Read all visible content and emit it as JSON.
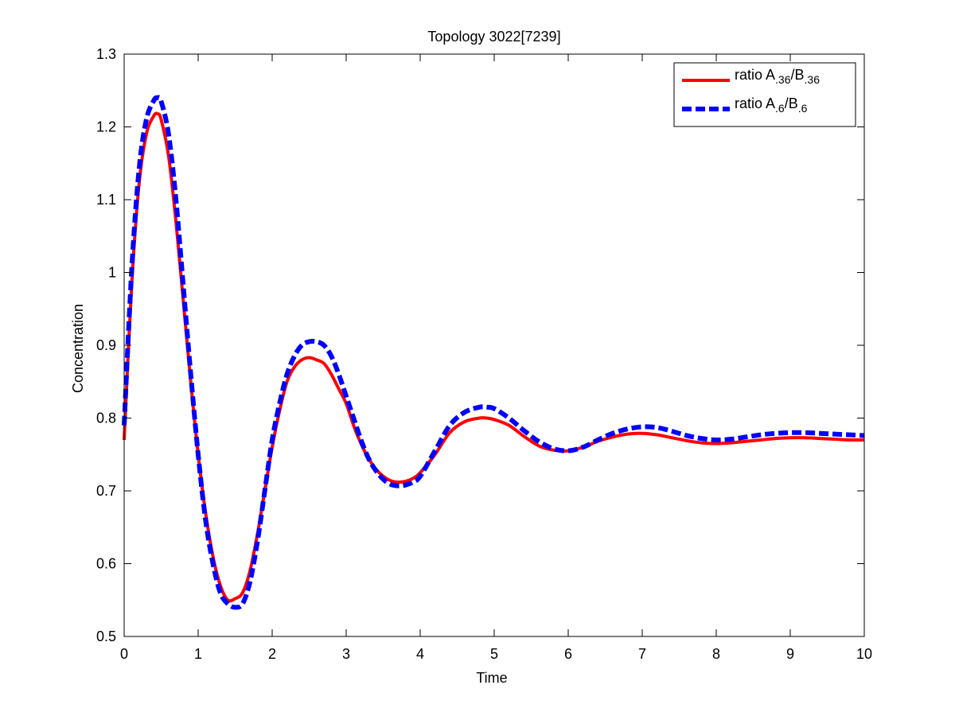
{
  "chart_data": {
    "type": "line",
    "title": "Topology 3022[7239]",
    "xlabel": "Time",
    "ylabel": "Concentration",
    "xlim": [
      0,
      10
    ],
    "ylim": [
      0.5,
      1.3
    ],
    "xticks": [
      0,
      1,
      2,
      3,
      4,
      5,
      6,
      7,
      8,
      9,
      10
    ],
    "yticks": [
      0.5,
      0.6,
      0.7,
      0.8,
      0.9,
      1,
      1.1,
      1.2,
      1.3
    ],
    "xtick_labels": [
      "0",
      "1",
      "2",
      "3",
      "4",
      "5",
      "6",
      "7",
      "8",
      "9",
      "10"
    ],
    "ytick_labels": [
      "0.5",
      "0.6",
      "0.7",
      "0.8",
      "0.9",
      "1",
      "1.1",
      "1.2",
      "1.3"
    ],
    "grid": false,
    "legend_position": "top-right",
    "series": [
      {
        "name": "ratio A.36/B.36",
        "legend": {
          "base": "ratio A",
          "sub1": ".36",
          "mid": "/B",
          "sub2": ".36"
        },
        "color": "#ff0000",
        "style": "solid",
        "x": [
          0,
          0.1,
          0.2,
          0.3,
          0.4,
          0.45,
          0.5,
          0.6,
          0.7,
          0.8,
          0.9,
          1.0,
          1.1,
          1.2,
          1.3,
          1.4,
          1.5,
          1.6,
          1.7,
          1.8,
          1.9,
          2.0,
          2.1,
          2.2,
          2.3,
          2.4,
          2.5,
          2.6,
          2.7,
          2.8,
          2.9,
          3.0,
          3.1,
          3.2,
          3.3,
          3.4,
          3.5,
          3.6,
          3.7,
          3.8,
          3.9,
          4.0,
          4.2,
          4.4,
          4.6,
          4.8,
          4.9,
          5.0,
          5.2,
          5.4,
          5.6,
          5.8,
          6.0,
          6.2,
          6.4,
          6.6,
          6.8,
          7.0,
          7.2,
          7.4,
          7.6,
          7.8,
          8.0,
          8.2,
          8.4,
          8.6,
          8.8,
          9.0,
          9.2,
          9.4,
          9.6,
          9.8,
          10.0
        ],
        "y": [
          0.77,
          0.98,
          1.12,
          1.19,
          1.215,
          1.218,
          1.21,
          1.16,
          1.07,
          0.96,
          0.85,
          0.75,
          0.67,
          0.61,
          0.57,
          0.55,
          0.552,
          0.56,
          0.59,
          0.64,
          0.7,
          0.76,
          0.81,
          0.85,
          0.87,
          0.88,
          0.883,
          0.88,
          0.875,
          0.86,
          0.84,
          0.82,
          0.79,
          0.765,
          0.745,
          0.73,
          0.72,
          0.714,
          0.712,
          0.713,
          0.717,
          0.725,
          0.75,
          0.78,
          0.795,
          0.8,
          0.8,
          0.798,
          0.79,
          0.775,
          0.762,
          0.756,
          0.755,
          0.76,
          0.768,
          0.774,
          0.778,
          0.779,
          0.777,
          0.773,
          0.769,
          0.766,
          0.765,
          0.766,
          0.768,
          0.77,
          0.772,
          0.773,
          0.773,
          0.772,
          0.771,
          0.77,
          0.77
        ]
      },
      {
        "name": "ratio A.6/B.6",
        "legend": {
          "base": "ratio A",
          "sub1": ".6",
          "mid": "/B",
          "sub2": ".6"
        },
        "color": "#0000ff",
        "style": "dashed",
        "x": [
          0,
          0.1,
          0.2,
          0.3,
          0.4,
          0.45,
          0.5,
          0.6,
          0.7,
          0.8,
          0.9,
          1.0,
          1.1,
          1.2,
          1.3,
          1.4,
          1.5,
          1.6,
          1.7,
          1.8,
          1.9,
          2.0,
          2.1,
          2.2,
          2.3,
          2.4,
          2.5,
          2.6,
          2.7,
          2.8,
          2.9,
          3.0,
          3.1,
          3.2,
          3.3,
          3.4,
          3.5,
          3.6,
          3.7,
          3.8,
          3.9,
          4.0,
          4.2,
          4.4,
          4.6,
          4.8,
          4.9,
          5.0,
          5.2,
          5.4,
          5.6,
          5.8,
          6.0,
          6.2,
          6.4,
          6.6,
          6.8,
          7.0,
          7.2,
          7.4,
          7.6,
          7.8,
          8.0,
          8.2,
          8.4,
          8.6,
          8.8,
          9.0,
          9.2,
          9.4,
          9.6,
          9.8,
          10.0
        ],
        "y": [
          0.79,
          1.0,
          1.14,
          1.21,
          1.236,
          1.24,
          1.235,
          1.19,
          1.1,
          0.98,
          0.86,
          0.75,
          0.66,
          0.6,
          0.56,
          0.545,
          0.54,
          0.545,
          0.575,
          0.63,
          0.7,
          0.77,
          0.82,
          0.86,
          0.885,
          0.9,
          0.905,
          0.905,
          0.9,
          0.885,
          0.86,
          0.83,
          0.8,
          0.77,
          0.745,
          0.728,
          0.716,
          0.709,
          0.707,
          0.708,
          0.712,
          0.72,
          0.755,
          0.79,
          0.808,
          0.815,
          0.815,
          0.813,
          0.8,
          0.783,
          0.768,
          0.758,
          0.755,
          0.76,
          0.77,
          0.779,
          0.785,
          0.788,
          0.787,
          0.782,
          0.776,
          0.772,
          0.77,
          0.771,
          0.774,
          0.777,
          0.779,
          0.78,
          0.78,
          0.779,
          0.778,
          0.777,
          0.776
        ]
      }
    ]
  }
}
